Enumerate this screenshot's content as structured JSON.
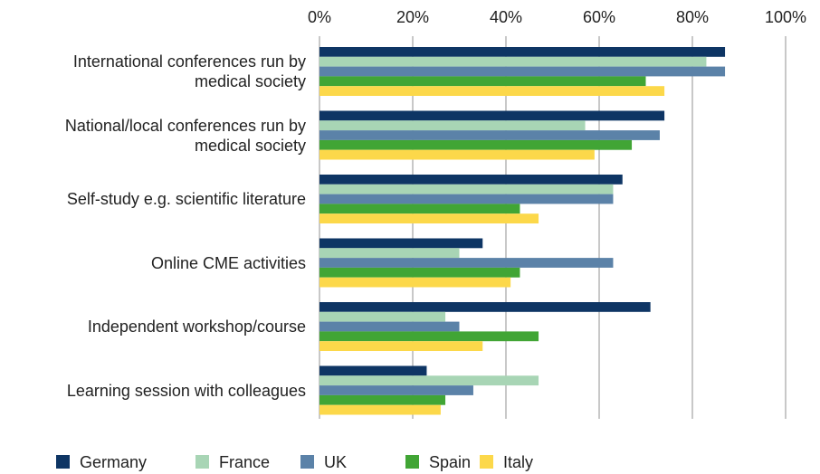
{
  "chart_data": {
    "type": "bar",
    "orientation": "horizontal",
    "categories": [
      "International conferences run by\nmedical society",
      "National/local conferences run by\nmedical society",
      "Self-study e.g. scientific literature",
      "Online CME activities",
      "Independent workshop/course",
      "Learning session with colleagues"
    ],
    "series": [
      {
        "name": "Germany",
        "color": "#0e3564",
        "values": [
          87,
          74,
          65,
          35,
          71,
          23
        ]
      },
      {
        "name": "France",
        "color": "#a8d5b5",
        "values": [
          83,
          57,
          63,
          30,
          27,
          47
        ]
      },
      {
        "name": "UK",
        "color": "#5b82a8",
        "values": [
          87,
          73,
          63,
          63,
          30,
          33
        ]
      },
      {
        "name": "Spain",
        "color": "#41a535",
        "values": [
          70,
          67,
          43,
          43,
          47,
          27
        ]
      },
      {
        "name": "Italy",
        "color": "#fcd84a",
        "values": [
          74,
          59,
          47,
          41,
          35,
          26
        ]
      }
    ],
    "xlim": [
      0,
      100
    ],
    "xticks": [
      {
        "value": 0,
        "label": "0%"
      },
      {
        "value": 20,
        "label": "20%"
      },
      {
        "value": 40,
        "label": "40%"
      },
      {
        "value": 60,
        "label": "60%"
      },
      {
        "value": 80,
        "label": "80%"
      },
      {
        "value": 100,
        "label": "100%"
      }
    ],
    "grid": true,
    "legend": "bottom"
  }
}
